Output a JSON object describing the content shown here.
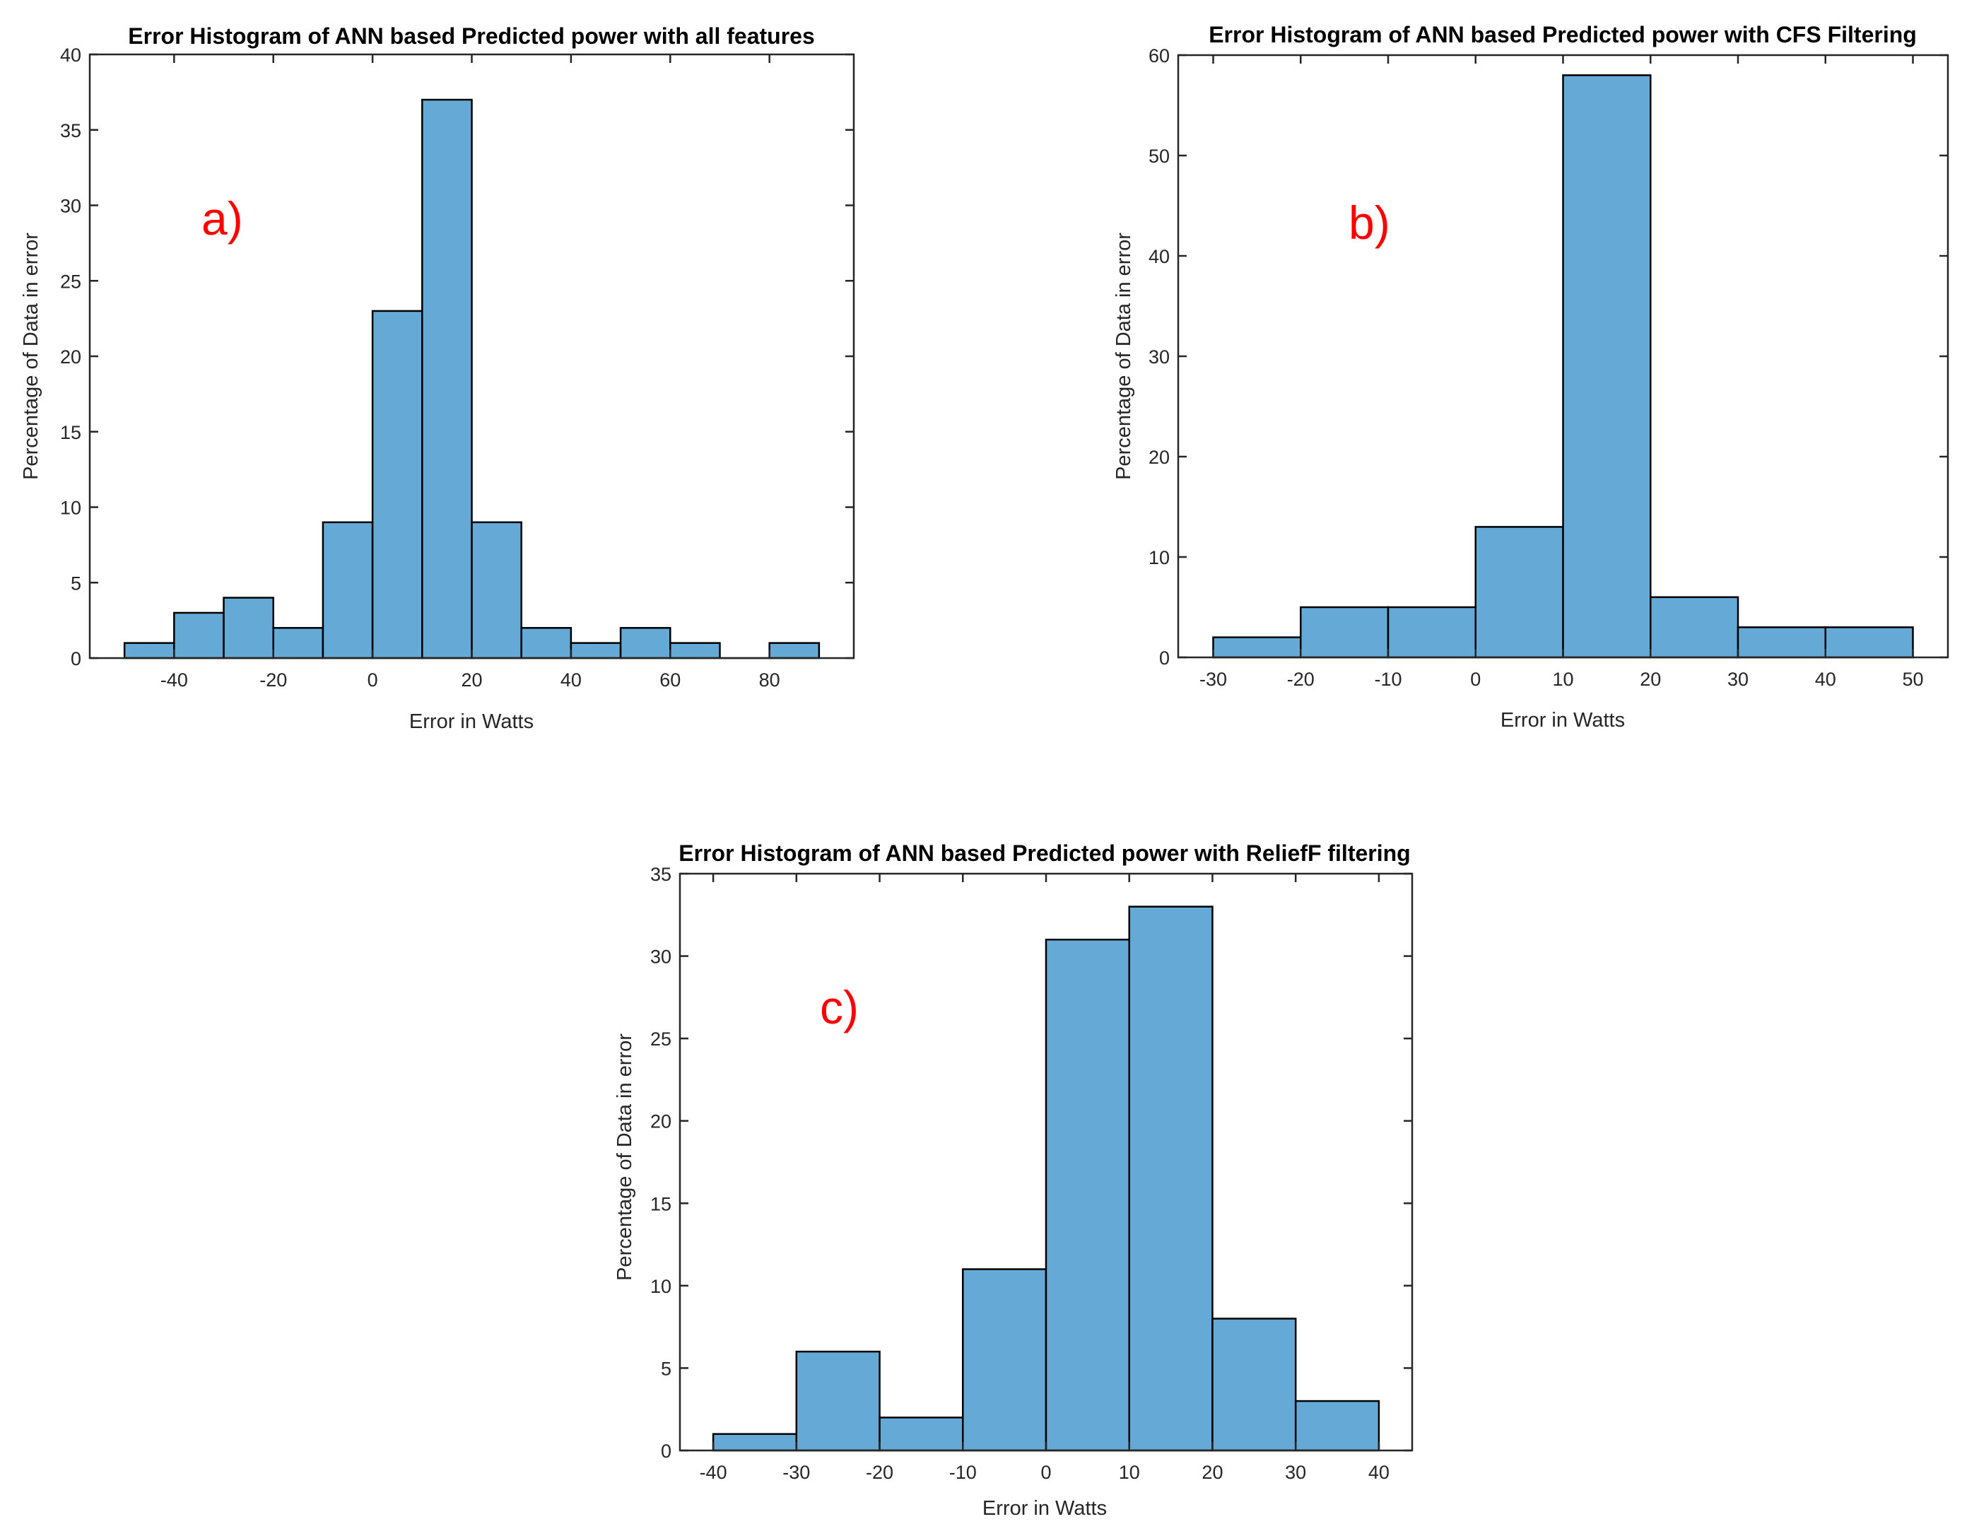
{
  "chart_data": [
    {
      "type": "bar",
      "panel_label": "a)",
      "title": "Error Histogram of ANN based Predicted power with all features",
      "xlabel": "Error in Watts",
      "ylabel": "Percentage of Data in error",
      "xlim": [
        -57,
        97
      ],
      "ylim": [
        0,
        40
      ],
      "xticks": [
        -40,
        -20,
        0,
        20,
        40,
        60,
        80
      ],
      "xtick_labels": [
        "-40",
        "-20",
        "0",
        "20",
        "40",
        "60",
        "80"
      ],
      "yticks": [
        0,
        5,
        10,
        15,
        20,
        25,
        30,
        35,
        40
      ],
      "ytick_labels": [
        "0",
        "5",
        "10",
        "15",
        "20",
        "25",
        "30",
        "35",
        "40"
      ],
      "bins": [
        {
          "start": -50,
          "end": -40,
          "value": 1
        },
        {
          "start": -40,
          "end": -30,
          "value": 3
        },
        {
          "start": -30,
          "end": -20,
          "value": 4
        },
        {
          "start": -20,
          "end": -10,
          "value": 2
        },
        {
          "start": -10,
          "end": 0,
          "value": 9
        },
        {
          "start": 0,
          "end": 10,
          "value": 23
        },
        {
          "start": 10,
          "end": 20,
          "value": 37
        },
        {
          "start": 20,
          "end": 30,
          "value": 9
        },
        {
          "start": 30,
          "end": 40,
          "value": 2
        },
        {
          "start": 40,
          "end": 50,
          "value": 1
        },
        {
          "start": 50,
          "end": 60,
          "value": 2
        },
        {
          "start": 60,
          "end": 70,
          "value": 1
        },
        {
          "start": 70,
          "end": 80,
          "value": 0
        },
        {
          "start": 80,
          "end": 90,
          "value": 1
        }
      ],
      "grid": false
    },
    {
      "type": "bar",
      "panel_label": "b)",
      "title": "Error Histogram of ANN based Predicted power with CFS Filtering",
      "xlabel": "Error in Watts",
      "ylabel": "Percentage of Data in error",
      "xlim": [
        -34,
        54
      ],
      "ylim": [
        0,
        60
      ],
      "xticks": [
        -30,
        -20,
        -10,
        0,
        10,
        20,
        30,
        40,
        50
      ],
      "xtick_labels": [
        "-30",
        "-20",
        "-10",
        "0",
        "10",
        "20",
        "30",
        "40",
        "50"
      ],
      "yticks": [
        0,
        10,
        20,
        30,
        40,
        50,
        60
      ],
      "ytick_labels": [
        "0",
        "10",
        "20",
        "30",
        "40",
        "50",
        "60"
      ],
      "bins": [
        {
          "start": -30,
          "end": -20,
          "value": 2
        },
        {
          "start": -20,
          "end": -10,
          "value": 5
        },
        {
          "start": -10,
          "end": 0,
          "value": 5
        },
        {
          "start": 0,
          "end": 10,
          "value": 13
        },
        {
          "start": 10,
          "end": 20,
          "value": 58
        },
        {
          "start": 20,
          "end": 30,
          "value": 6
        },
        {
          "start": 30,
          "end": 40,
          "value": 3
        },
        {
          "start": 40,
          "end": 50,
          "value": 3
        }
      ],
      "grid": false
    },
    {
      "type": "bar",
      "panel_label": "c)",
      "title": "Error Histogram of ANN based Predicted power with ReliefF filtering",
      "xlabel": "Error in Watts",
      "ylabel": "Percentage of Data in error",
      "xlim": [
        -44,
        44
      ],
      "ylim": [
        0,
        35
      ],
      "xticks": [
        -40,
        -30,
        -20,
        -10,
        0,
        10,
        20,
        30,
        40
      ],
      "xtick_labels": [
        "-40",
        "-30",
        "-20",
        "-10",
        "0",
        "10",
        "20",
        "30",
        "40"
      ],
      "yticks": [
        0,
        5,
        10,
        15,
        20,
        25,
        30,
        35
      ],
      "ytick_labels": [
        "0",
        "5",
        "10",
        "15",
        "20",
        "25",
        "30",
        "35"
      ],
      "bins": [
        {
          "start": -40,
          "end": -30,
          "value": 1
        },
        {
          "start": -30,
          "end": -20,
          "value": 6
        },
        {
          "start": -20,
          "end": -10,
          "value": 2
        },
        {
          "start": -10,
          "end": 0,
          "value": 11
        },
        {
          "start": 0,
          "end": 10,
          "value": 31
        },
        {
          "start": 10,
          "end": 20,
          "value": 33
        },
        {
          "start": 20,
          "end": 30,
          "value": 8
        },
        {
          "start": 30,
          "end": 40,
          "value": 3
        }
      ],
      "grid": false
    }
  ],
  "colors": {
    "bar_fill": "#65a9d7",
    "bar_edge": "#000000",
    "panel_label": "#ff0000"
  }
}
